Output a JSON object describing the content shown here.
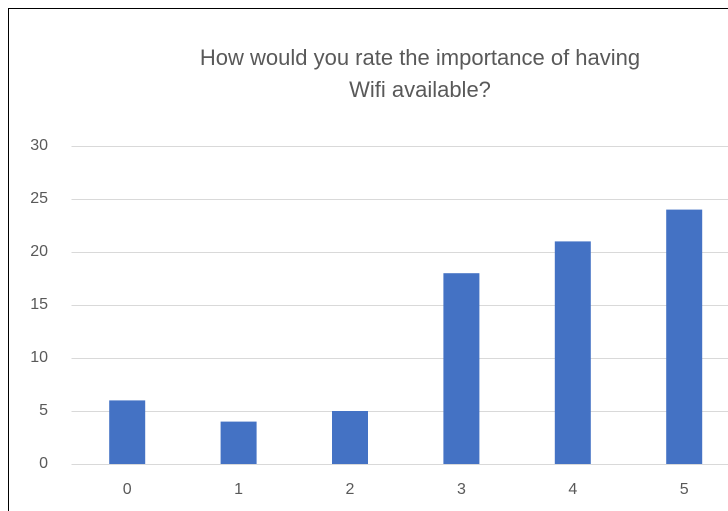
{
  "chart_data": {
    "type": "bar",
    "title": "How would you rate the importance of having Wifi available?",
    "categories": [
      "0",
      "1",
      "2",
      "3",
      "4",
      "5"
    ],
    "values": [
      6,
      4,
      5,
      18,
      21,
      24
    ],
    "color": "#4472c4",
    "ylim": [
      0,
      30
    ],
    "yticks": [
      0,
      5,
      10,
      15,
      20,
      25,
      30
    ],
    "grid": true
  }
}
